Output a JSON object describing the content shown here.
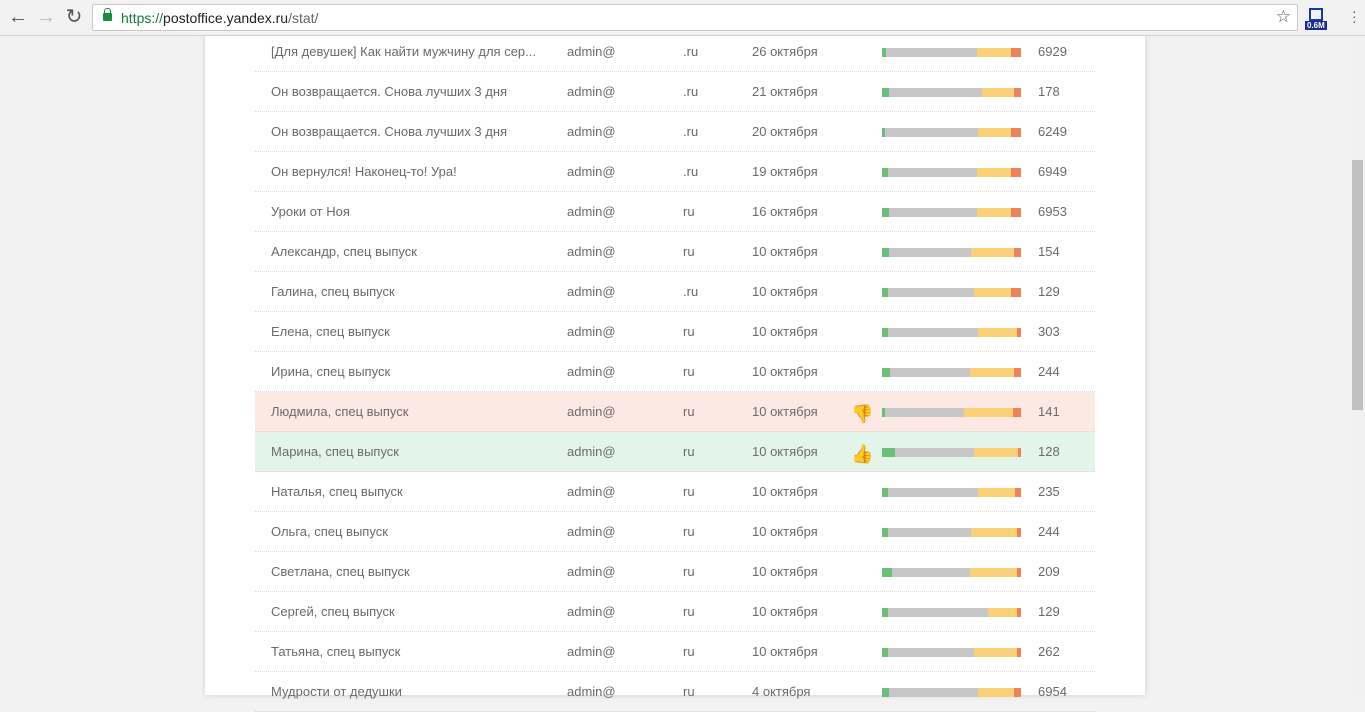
{
  "browser": {
    "url_scheme": "https://",
    "url_host": "postoffice.yandex.ru",
    "url_path": "/stat/",
    "extension_badge": "0.6M"
  },
  "colors": {
    "opened": "#6cbf76",
    "unread": "#c6c6c6",
    "pending": "#fbd177",
    "bounced": "#f0825a",
    "bad_row": "#fde9e4",
    "good_row": "#e3f5ea"
  },
  "rows": [
    {
      "subject": "[Для девушек] Как найти мужчину для сер...",
      "sender_prefix": "admin@",
      "sender_suffix": ".ru",
      "date": "26 октября",
      "count": "6929",
      "bar": [
        3,
        65,
        25,
        7
      ]
    },
    {
      "subject": "Он возвращается. Снова лучших 3 дня",
      "sender_prefix": "admin@",
      "sender_suffix": ".ru",
      "date": "21 октября",
      "count": "178",
      "bar": [
        5,
        67,
        23,
        5
      ]
    },
    {
      "subject": "Он возвращается. Снова лучших 3 дня",
      "sender_prefix": "admin@",
      "sender_suffix": ".ru",
      "date": "20 октября",
      "count": "6249",
      "bar": [
        2,
        67,
        24,
        7
      ]
    },
    {
      "subject": "Он вернулся! Наконец-то! Ура!",
      "sender_prefix": "admin@",
      "sender_suffix": ".ru",
      "date": "19 октября",
      "count": "6949",
      "bar": [
        4,
        64,
        25,
        7
      ]
    },
    {
      "subject": "Уроки от Ноя",
      "sender_prefix": "admin@",
      "sender_suffix": "ru",
      "date": "16 октября",
      "count": "6953",
      "bar": [
        5,
        63,
        25,
        7
      ]
    },
    {
      "subject": "Александр, спец выпуск",
      "sender_prefix": "admin@",
      "sender_suffix": "ru",
      "date": "10 октября",
      "count": "154",
      "bar": [
        5,
        59,
        31,
        5
      ]
    },
    {
      "subject": "Галина, спец выпуск",
      "sender_prefix": "admin@",
      "sender_suffix": ".ru",
      "date": "10 октября",
      "count": "129",
      "bar": [
        4,
        62,
        27,
        7
      ]
    },
    {
      "subject": "Елена, спец выпуск",
      "sender_prefix": "admin@",
      "sender_suffix": "ru",
      "date": "10 октября",
      "count": "303",
      "bar": [
        4,
        65,
        28,
        3
      ]
    },
    {
      "subject": "Ирина, спец выпуск",
      "sender_prefix": "admin@",
      "sender_suffix": "ru",
      "date": "10 октября",
      "count": "244",
      "bar": [
        6,
        57,
        32,
        5
      ]
    },
    {
      "subject": "Людмила, спец выпуск",
      "sender_prefix": "admin@",
      "sender_suffix": "ru",
      "date": "10 октября",
      "count": "141",
      "bar": [
        2,
        57,
        35,
        6
      ],
      "status": "bad"
    },
    {
      "subject": "Марина, спец выпуск",
      "sender_prefix": "admin@",
      "sender_suffix": "ru",
      "date": "10 октября",
      "count": "128",
      "bar": [
        9,
        57,
        32,
        2
      ],
      "status": "good"
    },
    {
      "subject": "Наталья, спец выпуск",
      "sender_prefix": "admin@",
      "sender_suffix": "ru",
      "date": "10 октября",
      "count": "235",
      "bar": [
        4,
        65,
        27,
        4
      ]
    },
    {
      "subject": "Ольга, спец выпуск",
      "sender_prefix": "admin@",
      "sender_suffix": "ru",
      "date": "10 октября",
      "count": "244",
      "bar": [
        4,
        60,
        33,
        3
      ]
    },
    {
      "subject": "Светлана, спец выпуск",
      "sender_prefix": "admin@",
      "sender_suffix": "ru",
      "date": "10 октября",
      "count": "209",
      "bar": [
        7,
        56,
        34,
        3
      ]
    },
    {
      "subject": "Сергей, спец выпуск",
      "sender_prefix": "admin@",
      "sender_suffix": "ru",
      "date": "10 октября",
      "count": "129",
      "bar": [
        4,
        72,
        21,
        3
      ]
    },
    {
      "subject": "Татьяна, спец выпуск",
      "sender_prefix": "admin@",
      "sender_suffix": "ru",
      "date": "10 октября",
      "count": "262",
      "bar": [
        4,
        62,
        31,
        3
      ]
    },
    {
      "subject": "Мудрости от дедушки",
      "sender_prefix": "admin@",
      "sender_suffix": "ru",
      "date": "4 октября",
      "count": "6954",
      "bar": [
        5,
        64,
        26,
        5
      ]
    }
  ]
}
